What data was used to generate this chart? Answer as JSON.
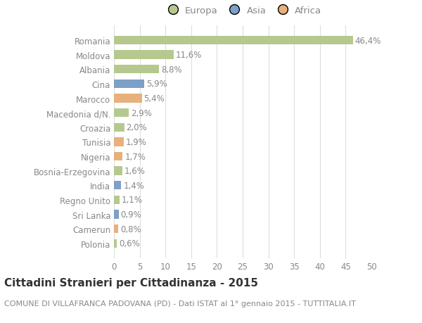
{
  "categories": [
    "Polonia",
    "Camerun",
    "Sri Lanka",
    "Regno Unito",
    "India",
    "Bosnia-Erzegovina",
    "Nigeria",
    "Tunisia",
    "Croazia",
    "Macedonia d/N.",
    "Marocco",
    "Cina",
    "Albania",
    "Moldova",
    "Romania"
  ],
  "values": [
    0.6,
    0.8,
    0.9,
    1.1,
    1.4,
    1.6,
    1.7,
    1.9,
    2.0,
    2.9,
    5.4,
    5.9,
    8.8,
    11.6,
    46.4
  ],
  "labels": [
    "0,6%",
    "0,8%",
    "0,9%",
    "1,1%",
    "1,4%",
    "1,6%",
    "1,7%",
    "1,9%",
    "2,0%",
    "2,9%",
    "5,4%",
    "5,9%",
    "8,8%",
    "11,6%",
    "46,4%"
  ],
  "continent": [
    "Europa",
    "Africa",
    "Asia",
    "Europa",
    "Asia",
    "Europa",
    "Africa",
    "Africa",
    "Europa",
    "Europa",
    "Africa",
    "Asia",
    "Europa",
    "Europa",
    "Europa"
  ],
  "colors": {
    "Europa": "#b5c98e",
    "Asia": "#7ca0c7",
    "Africa": "#e8b07a"
  },
  "legend_order": [
    "Europa",
    "Asia",
    "Africa"
  ],
  "xlim": [
    0,
    50
  ],
  "xticks": [
    0,
    5,
    10,
    15,
    20,
    25,
    30,
    35,
    40,
    45,
    50
  ],
  "title": "Cittadini Stranieri per Cittadinanza - 2015",
  "subtitle": "COMUNE DI VILLAFRANCA PADOVANA (PD) - Dati ISTAT al 1° gennaio 2015 - TUTTITALIA.IT",
  "bg_color": "#ffffff",
  "grid_color": "#dddddd",
  "bar_height": 0.6,
  "label_fontsize": 8.5,
  "tick_fontsize": 8.5,
  "xtick_fontsize": 8.5,
  "title_fontsize": 11,
  "subtitle_fontsize": 8,
  "legend_fontsize": 9.5,
  "label_color": "#888888",
  "tick_color": "#888888",
  "title_color": "#333333",
  "subtitle_color": "#888888"
}
